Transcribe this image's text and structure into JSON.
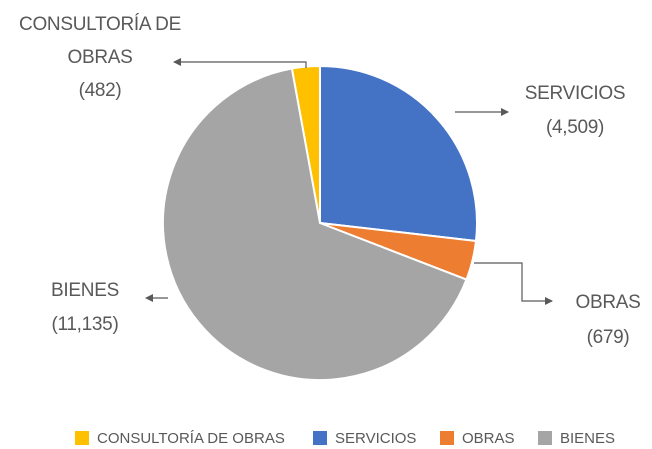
{
  "chart_data": {
    "type": "pie",
    "categories": [
      "CONSULTORÍA DE OBRAS",
      "SERVICIOS",
      "OBRAS",
      "BIENES"
    ],
    "values": [
      482,
      4509,
      679,
      11135
    ],
    "value_labels": [
      "(482)",
      "(4,509)",
      "(679)",
      "(11,135)"
    ],
    "colors": [
      "#ffc000",
      "#4472c4",
      "#ed7d31",
      "#a5a5a5"
    ],
    "legend": "bottom"
  }
}
